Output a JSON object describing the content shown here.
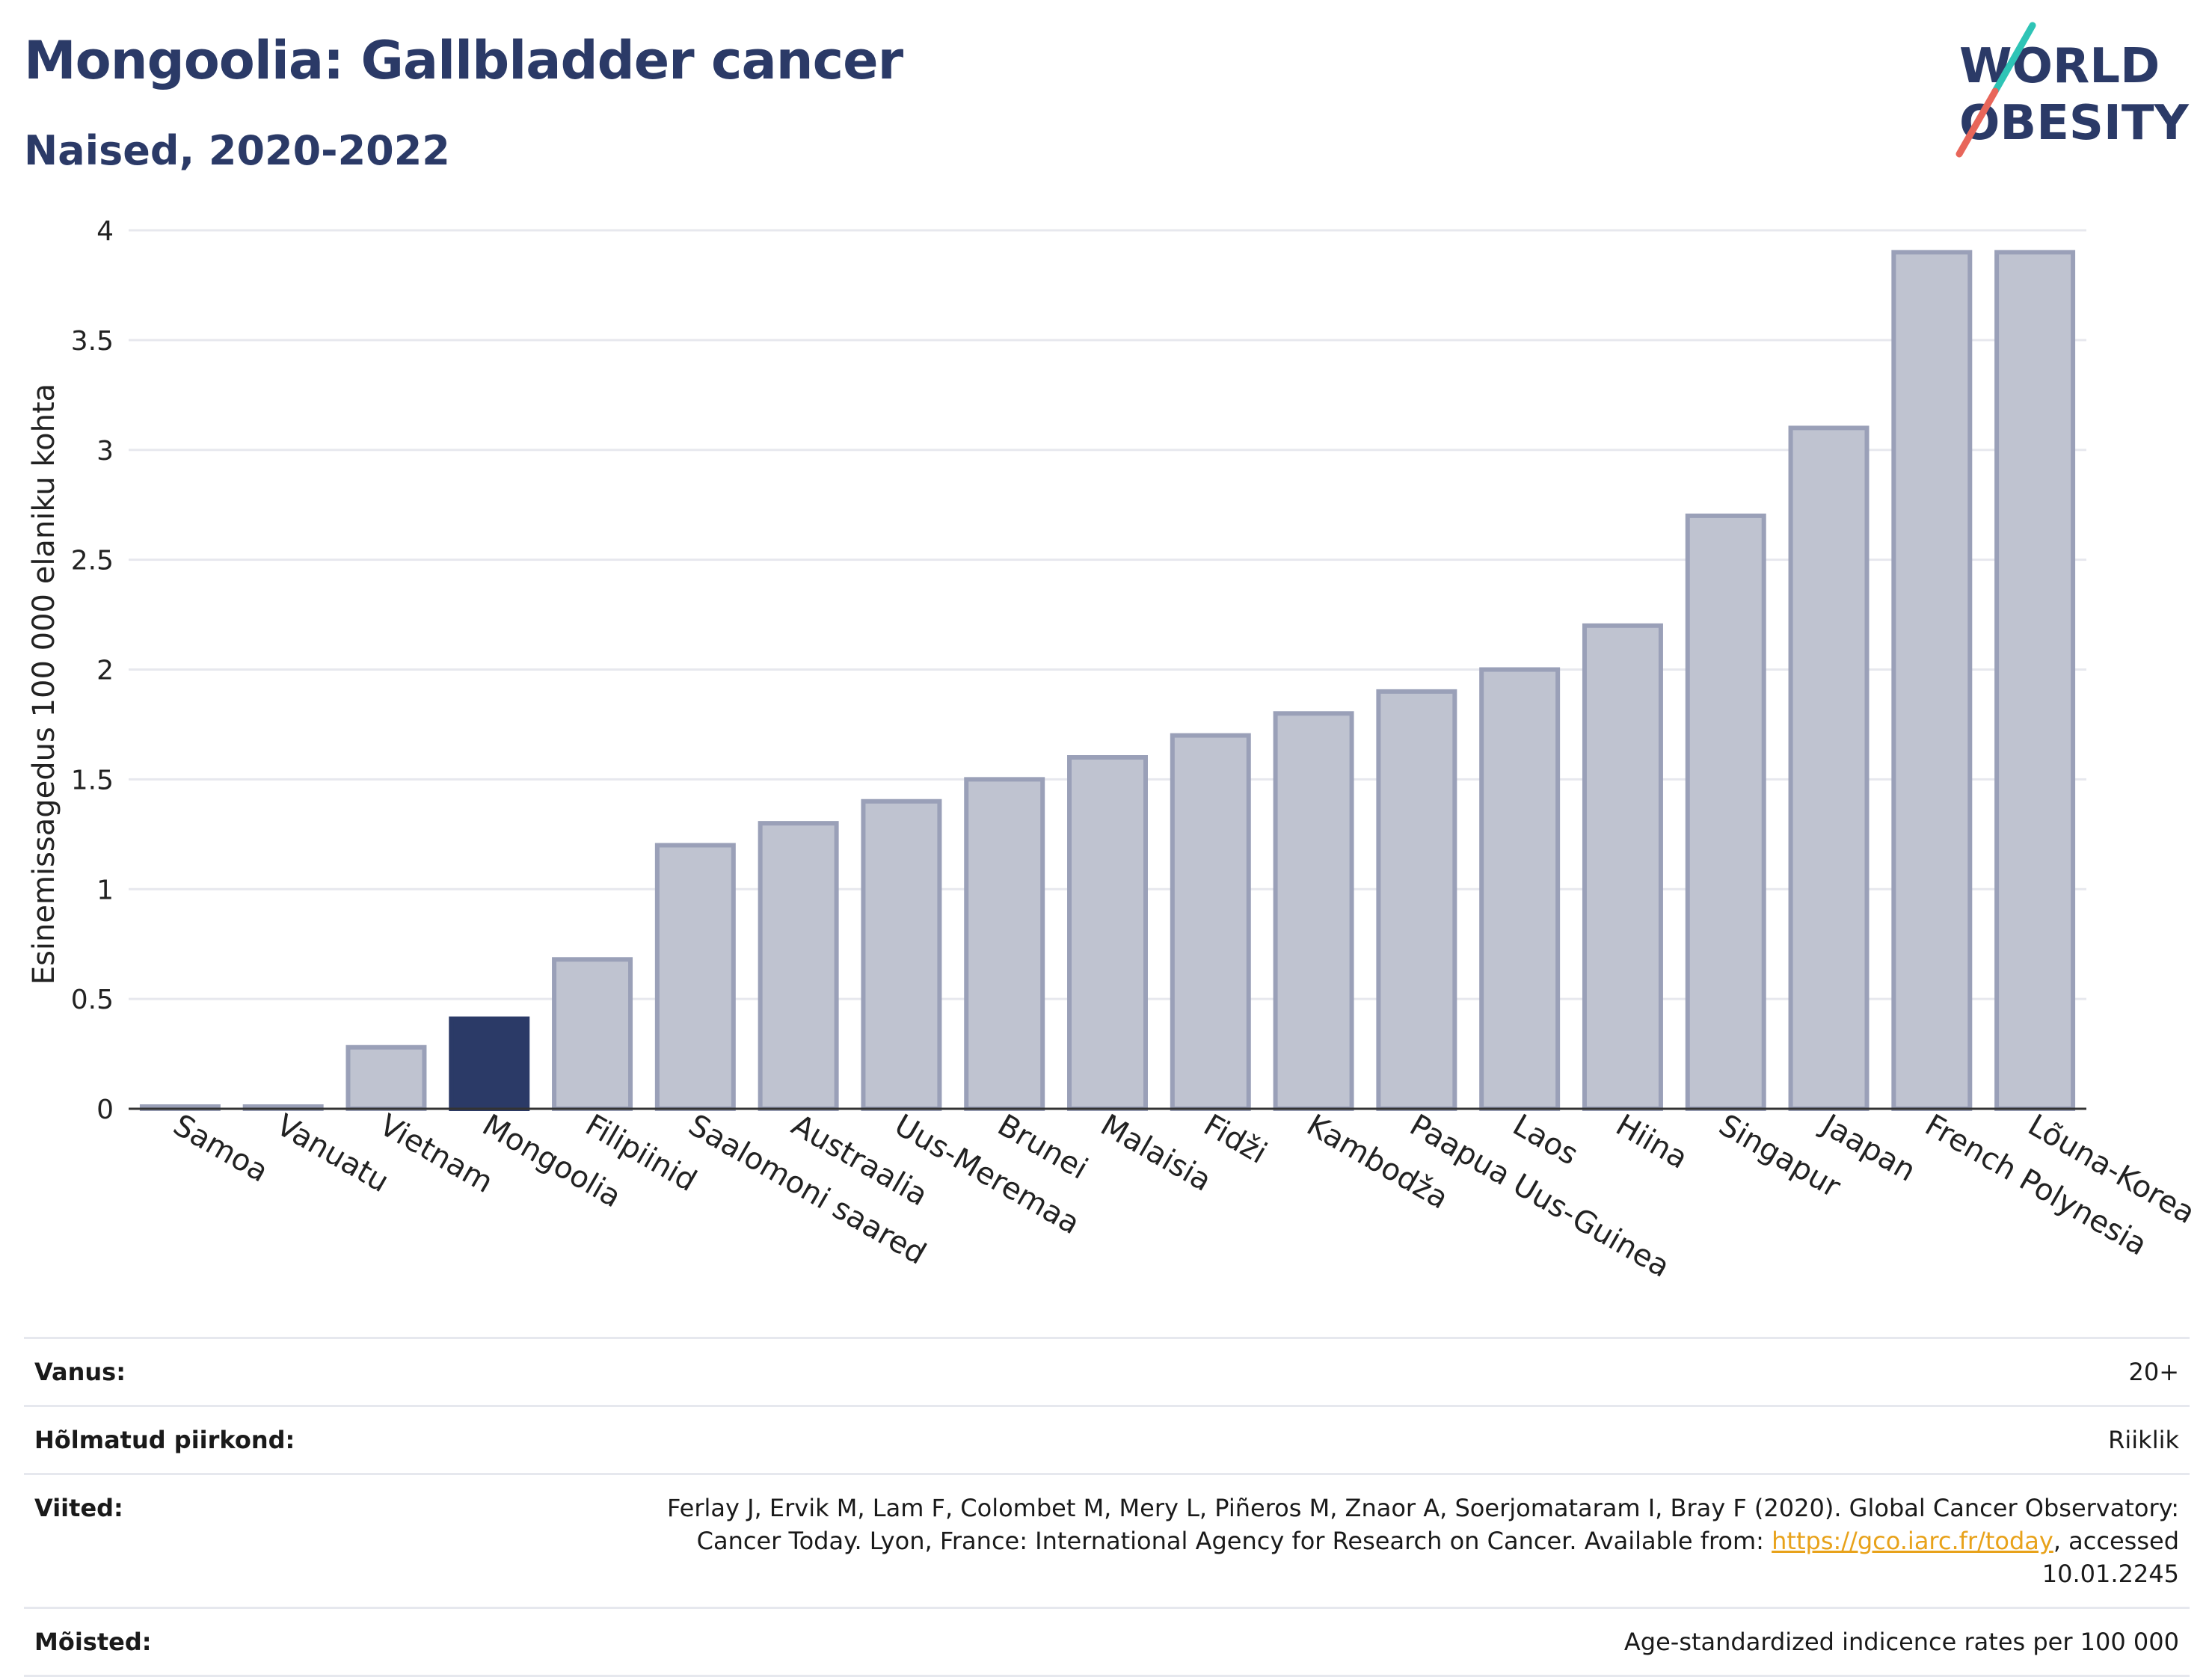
{
  "header": {
    "title": "Mongoolia: Gallbladder cancer",
    "subtitle": "Naised, 2020-2022"
  },
  "logo": {
    "line1": "WORLD",
    "line2": "OBESITY",
    "accent_teal": "#2ec4b6",
    "accent_red": "#e8665a",
    "color": "#2b3a67"
  },
  "chart_data": {
    "type": "bar",
    "ylabel": "Esinemissagedus 100 000 elaniku kohta",
    "ylim": [
      0,
      4
    ],
    "yticks": [
      "0",
      "0.5",
      "1",
      "1.5",
      "2",
      "2.5",
      "3",
      "3.5",
      "4"
    ],
    "grid": true,
    "categories": [
      "Samoa",
      "Vanuatu",
      "Vietnam",
      "Mongoolia",
      "Filipiinid",
      "Saalomoni saared",
      "Austraalia",
      "Uus-Meremaa",
      "Brunei",
      "Malaisia",
      "Fidži",
      "Kambodža",
      "Paapua Uus-Guinea",
      "Laos",
      "Hiina",
      "Singapur",
      "Jaapan",
      "French Polynesia",
      "Lõuna-Korea"
    ],
    "values": [
      0.01,
      0.01,
      0.28,
      0.41,
      0.68,
      1.2,
      1.3,
      1.4,
      1.5,
      1.6,
      1.7,
      1.8,
      1.9,
      2.0,
      2.2,
      2.7,
      3.1,
      3.9,
      3.9
    ],
    "highlight": "Mongoolia",
    "colors": {
      "bar": "#bfc3d0",
      "bar_edge": "#9aa0b8",
      "highlight": "#2b3a67"
    }
  },
  "info": {
    "rows": [
      {
        "key": "Vanus:",
        "value": "20+"
      },
      {
        "key": "Hõlmatud piirkond:",
        "value": "Riiklik"
      },
      {
        "key": "Viited:",
        "value_pre": "Ferlay J, Ervik M, Lam F, Colombet M, Mery L, Piñeros M, Znaor A, Soerjomataram I, Bray F (2020). Global Cancer Observatory: Cancer Today. Lyon, France: International Agency for Research on Cancer. Available from: ",
        "link": "https://gco.iarc.fr/today",
        "value_post": ", accessed 10.01.2245"
      },
      {
        "key": "Mõisted:",
        "value": "Age-standardized indicence rates per 100 000"
      }
    ]
  }
}
